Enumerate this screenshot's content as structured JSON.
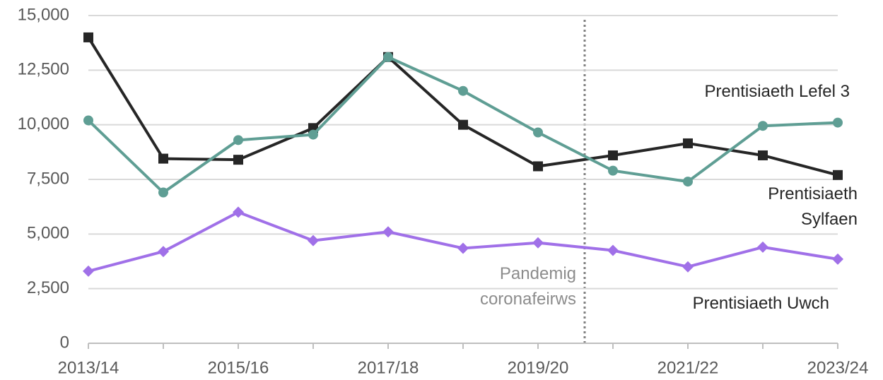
{
  "chart_data": {
    "type": "line",
    "categories": [
      "2013/14",
      null,
      "2015/16",
      null,
      "2017/18",
      null,
      "2019/20",
      null,
      "2021/22",
      null,
      "2023/24"
    ],
    "series": [
      {
        "name": "Prentisiaeth Sylfaen",
        "color": "#262626",
        "marker": "square",
        "values": [
          14000,
          8450,
          8400,
          9850,
          13100,
          10000,
          8100,
          8600,
          9150,
          8600,
          7700
        ]
      },
      {
        "name": "Prentisiaeth Lefel 3",
        "color": "#5f9e94",
        "marker": "circle",
        "values": [
          10200,
          6900,
          9300,
          9550,
          13100,
          11550,
          9650,
          7900,
          7400,
          9950,
          10100
        ]
      },
      {
        "name": "Prentisiaeth Uwch",
        "color": "#a070e8",
        "marker": "diamond",
        "values": [
          3300,
          4200,
          6000,
          4700,
          5100,
          4350,
          4600,
          4250,
          3500,
          4400,
          3850
        ]
      }
    ],
    "annotation": "Pandemig coronafeirws",
    "ylim": [
      0,
      15000
    ],
    "yticks": [
      0,
      {
        "value": 2500,
        "label": "2,500"
      },
      {
        "value": 5000,
        "label": "5,000"
      },
      {
        "value": 7500,
        "label": "7,500"
      },
      {
        "value": 10000,
        "label": "10,000"
      },
      {
        "value": 12500,
        "label": "12,500"
      },
      {
        "value": 15000,
        "label": "15,000"
      }
    ],
    "grid": true
  }
}
